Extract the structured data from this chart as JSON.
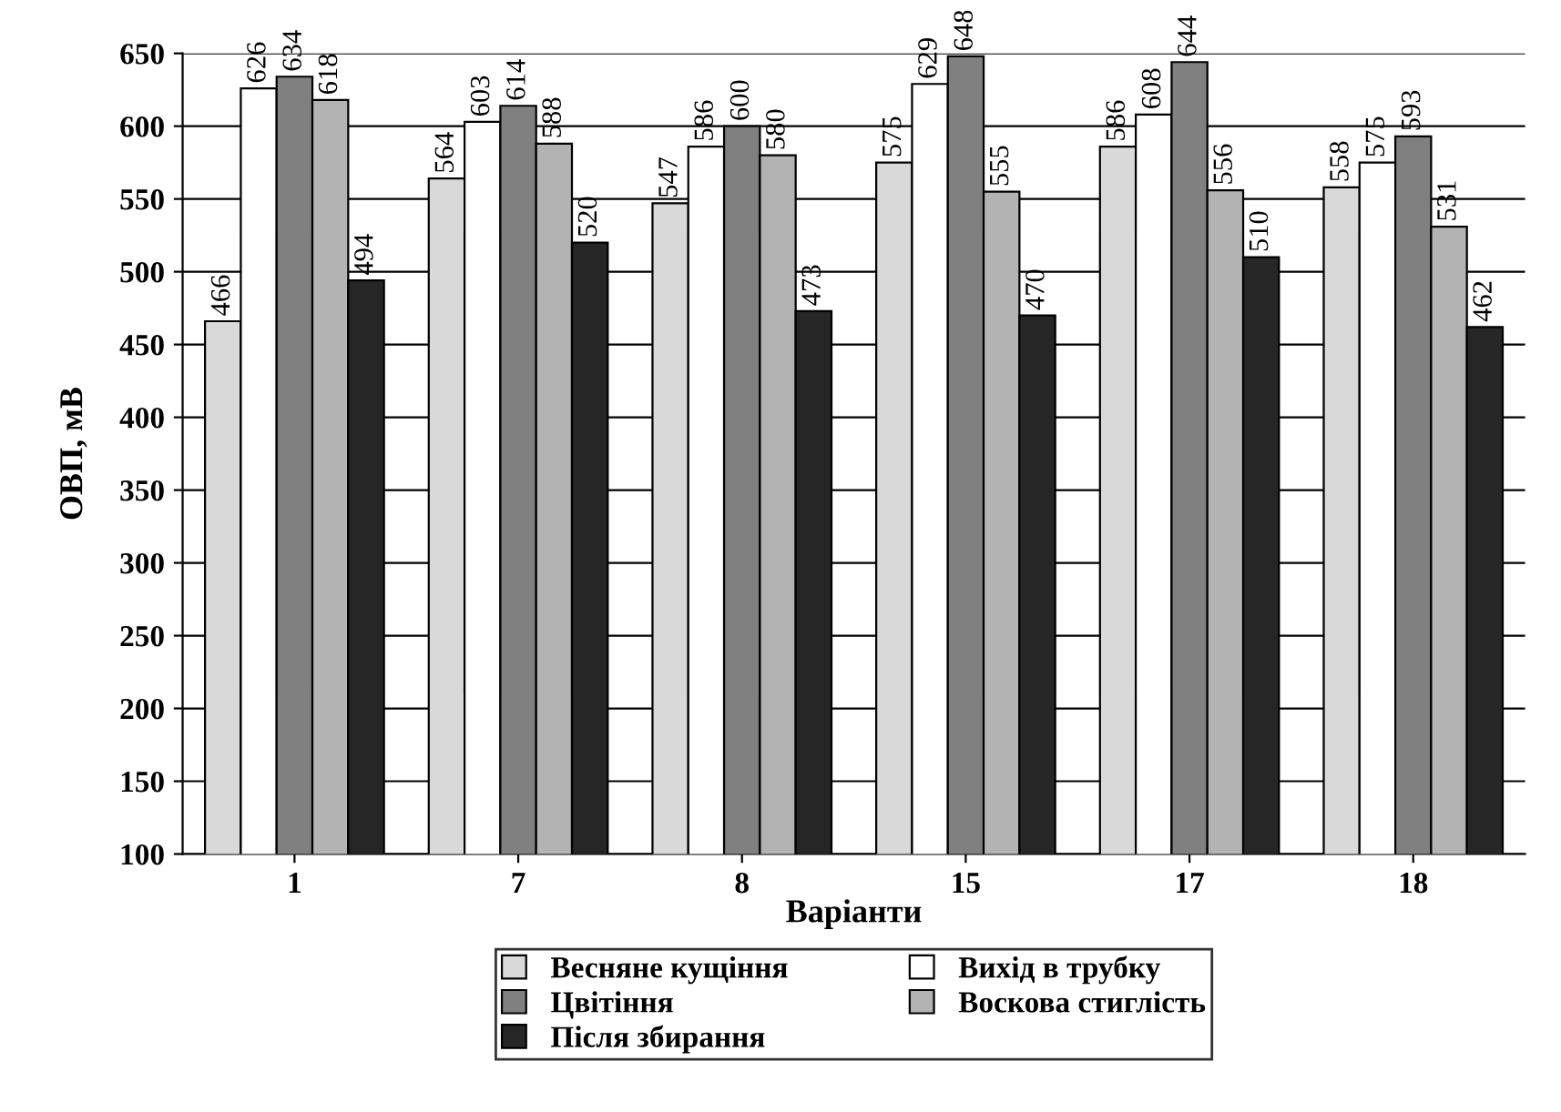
{
  "chart_data": {
    "type": "bar",
    "xlabel": "Варіанти",
    "ylabel": "ОВП, мВ",
    "categories": [
      "1",
      "7",
      "8",
      "15",
      "17",
      "18"
    ],
    "series": [
      {
        "name": "Весняне кущіння",
        "color": "#d9d9d9",
        "values": [
          466,
          564,
          547,
          575,
          586,
          558
        ]
      },
      {
        "name": "Вихід в трубку",
        "color": "#ffffff",
        "values": [
          626,
          603,
          586,
          629,
          608,
          575
        ]
      },
      {
        "name": "Цвітіння",
        "color": "#808080",
        "values": [
          634,
          614,
          600,
          648,
          644,
          593
        ]
      },
      {
        "name": "Воскова стиглість",
        "color": "#b3b3b3",
        "values": [
          618,
          588,
          580,
          555,
          556,
          531
        ]
      },
      {
        "name": "Після збирання",
        "color": "#262626",
        "values": [
          494,
          520,
          473,
          470,
          510,
          462
        ]
      }
    ],
    "ylim": [
      100,
      650
    ],
    "yticks": [
      100,
      150,
      200,
      250,
      300,
      350,
      400,
      450,
      500,
      550,
      600,
      650
    ],
    "grid": "y",
    "legend": "bottom",
    "data_labels": true
  }
}
